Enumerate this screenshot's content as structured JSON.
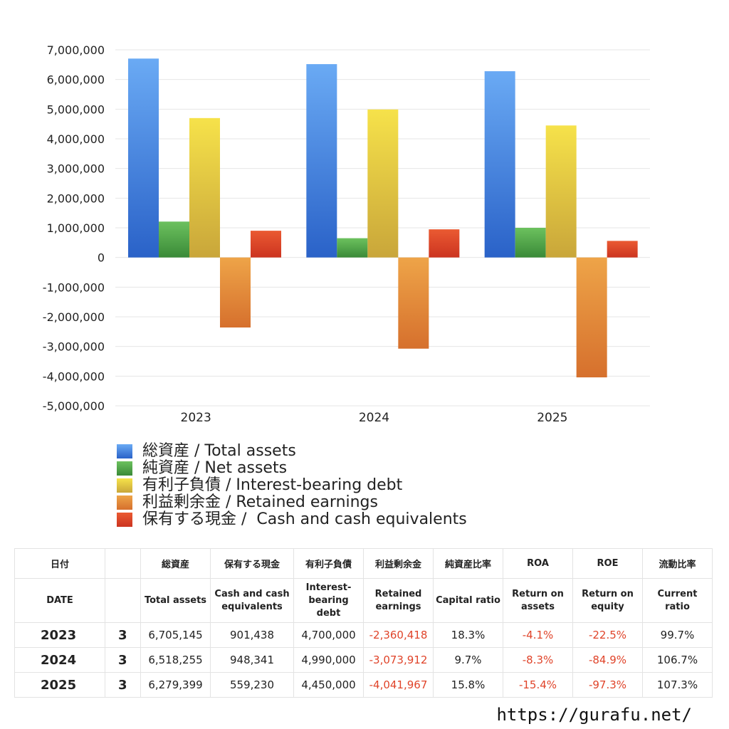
{
  "chart_data": {
    "type": "bar",
    "categories": [
      "2023",
      "2024",
      "2025"
    ],
    "ylim": [
      -5000000,
      7000000
    ],
    "yticks": [
      7000000,
      6000000,
      5000000,
      4000000,
      3000000,
      2000000,
      1000000,
      0,
      -1000000,
      -2000000,
      -3000000,
      -4000000,
      -5000000
    ],
    "ytick_labels": [
      "7,000,000",
      "6,000,000",
      "5,000,000",
      "4,000,000",
      "3,000,000",
      "2,000,000",
      "1,000,000",
      "0",
      "-1,000,000",
      "-2,000,000",
      "-3,000,000",
      "-4,000,000",
      "-5,000,000"
    ],
    "grid": true,
    "legend_position": "bottom-left",
    "series": [
      {
        "name": "総資産 / Total assets",
        "values": [
          6705145,
          6518255,
          6279399
        ],
        "color": "#3f82e0",
        "color_light": "#6aaaf4",
        "color_dark": "#2a62c8"
      },
      {
        "name": "純資産 / Net assets",
        "values": [
          1210000,
          650000,
          1000000
        ],
        "color": "#4ea84a",
        "color_light": "#6cc15e",
        "color_dark": "#3a8a38"
      },
      {
        "name": "有利子負債 / Interest-bearing debt",
        "values": [
          4700000,
          4990000,
          4450000
        ],
        "color": "#e6c63d",
        "color_light": "#f6e24a",
        "color_dark": "#c9a63a"
      },
      {
        "name": "利益剰余金 / Retained earnings",
        "values": [
          -2360418,
          -3073912,
          -4041967
        ],
        "color": "#e68a35",
        "color_light": "#eea448",
        "color_dark": "#d6702d"
      },
      {
        "name": "保有する現金 /  Cash and cash equivalents",
        "values": [
          901438,
          948341,
          559230
        ],
        "color": "#e2452a",
        "color_light": "#ea5a32",
        "color_dark": "#cc3420"
      }
    ]
  },
  "table": {
    "header_jp": [
      "日付",
      "",
      "総資産",
      "保有する現金",
      "有利子負債",
      "利益剰余金",
      "純資産比率",
      "ROA",
      "ROE",
      "流動比率"
    ],
    "header_en": [
      "DATE",
      "",
      "Total assets",
      "Cash and cash equivalents",
      "Interest-bearing debt",
      "Retained earnings",
      "Capital ratio",
      "Return on assets",
      "Return on equity",
      "Current ratio"
    ],
    "rows": [
      {
        "year": "2023",
        "month": "3",
        "total_assets": "6,705,145",
        "cash": "901,438",
        "debt": "4,700,000",
        "retained": "-2,360,418",
        "capital_ratio": "18.3%",
        "roa": "-4.1%",
        "roe": "-22.5%",
        "current_ratio": "99.7%"
      },
      {
        "year": "2024",
        "month": "3",
        "total_assets": "6,518,255",
        "cash": "948,341",
        "debt": "4,990,000",
        "retained": "-3,073,912",
        "capital_ratio": "9.7%",
        "roa": "-8.3%",
        "roe": "-84.9%",
        "current_ratio": "106.7%"
      },
      {
        "year": "2025",
        "month": "3",
        "total_assets": "6,279,399",
        "cash": "559,230",
        "debt": "4,450,000",
        "retained": "-4,041,967",
        "capital_ratio": "15.8%",
        "roa": "-15.4%",
        "roe": "-97.3%",
        "current_ratio": "107.3%"
      }
    ],
    "negative_color": "#e0442a"
  },
  "footer": {
    "url": "https://gurafu.net/"
  }
}
